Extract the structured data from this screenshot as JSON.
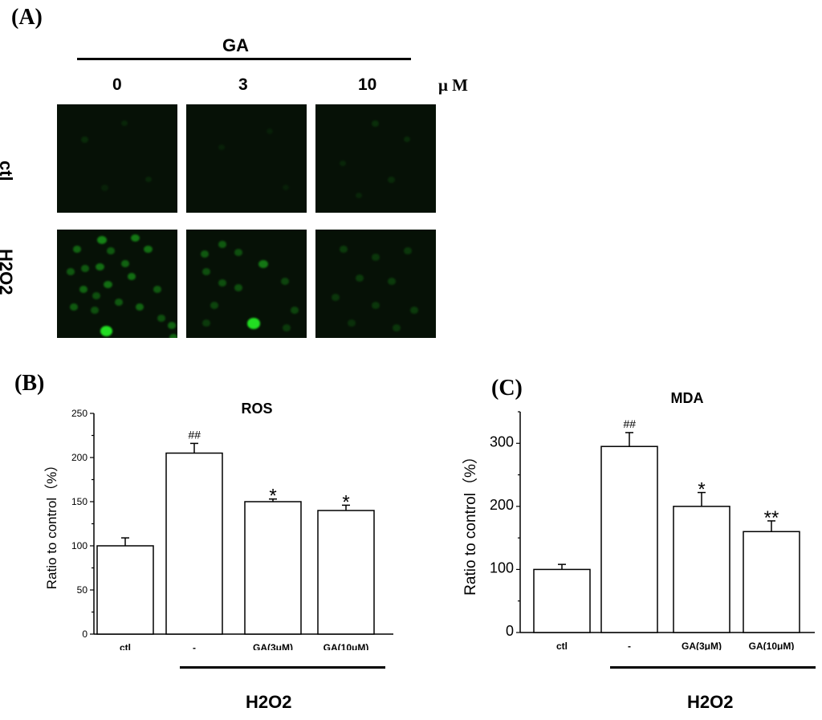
{
  "panel_a": {
    "letter": "(A)",
    "treatment_label": "GA",
    "doses": [
      "0",
      "3",
      "10"
    ],
    "unit": "μ M",
    "rows": [
      "ctl",
      "H2O2"
    ]
  },
  "chart_data": [
    {
      "panel": "(B)",
      "type": "bar",
      "title": "ROS",
      "ylabel": "Ratio to control（%）",
      "xlabel": "",
      "categories": [
        "ctl",
        "-",
        "GA(3μM)",
        "GA(10μM)"
      ],
      "values": [
        100,
        205,
        150,
        140
      ],
      "errors": [
        9,
        11,
        3,
        6
      ],
      "annotations": [
        "",
        "##",
        "*",
        "*"
      ],
      "ylim": [
        0,
        250
      ],
      "yticks": [
        0,
        50,
        100,
        150,
        200,
        250
      ],
      "group_label": "H2O2",
      "grid": false
    },
    {
      "panel": "(C)",
      "type": "bar",
      "title": "MDA",
      "ylabel": "Ratio to control（%）",
      "xlabel": "",
      "categories": [
        "ctl",
        "-",
        "GA(3μM)",
        "GA(10μM)"
      ],
      "values": [
        100,
        295,
        200,
        160
      ],
      "errors": [
        8,
        22,
        22,
        17
      ],
      "annotations": [
        "",
        "##",
        "*",
        "**"
      ],
      "ylim": [
        0,
        350
      ],
      "yticks": [
        0,
        100,
        200,
        300
      ],
      "group_label": "H2O2",
      "grid": false
    }
  ],
  "colors": {
    "axis": "#000000",
    "bar_fill": "#ffffff",
    "fluorescence": "#22dd22",
    "tile_bg": "#061106"
  }
}
